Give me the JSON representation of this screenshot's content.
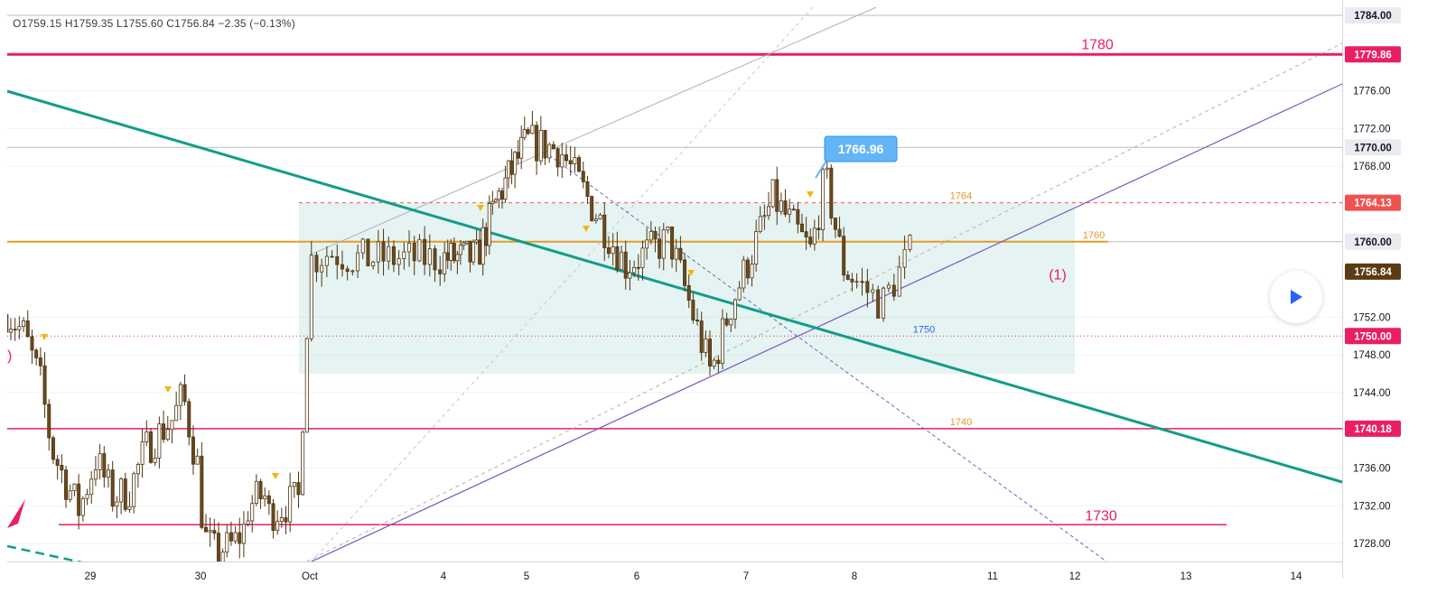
{
  "ohlc": {
    "text": "O1759.15 H1759.35 L1755.60 C1756.84 −2.35 (−0.13%)"
  },
  "colors": {
    "candle_body": "#6b4a1f",
    "channel_line": "#7e57c2",
    "trend_line": "#139c8b",
    "level_red": "#e91e63",
    "level_orange": "#e39a2b",
    "price_tag_current": "#5b3a14",
    "price_tag_red": "#ef5350",
    "price_tag_pink": "#e91e63",
    "callout_blue": "#64b5f6"
  },
  "chart_data": {
    "type": "candlestick",
    "symbol_last": 1756.84,
    "ylim": [
      1726,
      1785
    ],
    "y_ticks": [
      1784,
      1776,
      1772,
      1768,
      1752,
      1748,
      1744,
      1736,
      1732,
      1728
    ],
    "x_labels": [
      {
        "label": "29",
        "day": 0
      },
      {
        "label": "30",
        "day": 1
      },
      {
        "label": "Oct",
        "day": 2
      },
      {
        "label": "4",
        "day": 3
      },
      {
        "label": "5",
        "day": 4
      },
      {
        "label": "6",
        "day": 5
      },
      {
        "label": "7",
        "day": 6
      },
      {
        "label": "8",
        "day": 7
      },
      {
        "label": "11",
        "day": 8
      },
      {
        "label": "12",
        "day": 9
      },
      {
        "label": "13",
        "day": 10
      },
      {
        "label": "14",
        "day": 11
      }
    ],
    "price_tags": [
      {
        "price": 1784.0,
        "label": "1784.00",
        "style": "grey"
      },
      {
        "price": 1779.86,
        "label": "1779.86",
        "style": "pink"
      },
      {
        "price": 1770.0,
        "label": "1770.00",
        "style": "grey"
      },
      {
        "price": 1764.13,
        "label": "1764.13",
        "style": "red"
      },
      {
        "price": 1760.0,
        "label": "1760.00",
        "style": "grey"
      },
      {
        "price": 1756.84,
        "label": "1756.84",
        "style": "current"
      },
      {
        "price": 1750.0,
        "label": "1750.00",
        "style": "pink"
      },
      {
        "price": 1740.18,
        "label": "1740.18",
        "style": "pink"
      }
    ],
    "levels": [
      {
        "price": 1779.86,
        "label": "1780",
        "style": "thick-pink"
      },
      {
        "price": 1764.13,
        "label": "1764",
        "style": "dashed-red"
      },
      {
        "price": 1760.0,
        "label": "1760",
        "style": "orange"
      },
      {
        "price": 1750.0,
        "label": "1750",
        "style": "dotted-pink"
      },
      {
        "price": 1740.18,
        "label": "1740",
        "style": "pink"
      },
      {
        "price": 1730.0,
        "label": "1730",
        "style": "pink"
      }
    ],
    "range_box": {
      "top": 1764.13,
      "bottom": 1746.0,
      "label": "(1)"
    },
    "callout": {
      "label": "1766.96",
      "price": 1766.96
    },
    "key_points": [
      {
        "day": 1.02,
        "price": 1752.6
      },
      {
        "day": 2.15,
        "price": 1758.9
      },
      {
        "day": 2.35,
        "price": 1758.2
      },
      {
        "day": 3.4,
        "price": 1758.3
      },
      {
        "day": 3.65,
        "price": 1764.6
      },
      {
        "day": 4.0,
        "price": 1770.6
      },
      {
        "day": 4.3,
        "price": 1769.8
      },
      {
        "day": 4.9,
        "price": 1757.5
      },
      {
        "day": 5.3,
        "price": 1760.3
      },
      {
        "day": 5.68,
        "price": 1746.0
      },
      {
        "day": 5.85,
        "price": 1752.9
      },
      {
        "day": 6.25,
        "price": 1764.6
      },
      {
        "day": 6.6,
        "price": 1758.9
      },
      {
        "day": 6.73,
        "price": 1766.96
      },
      {
        "day": 6.9,
        "price": 1757.3
      },
      {
        "day": 7.2,
        "price": 1753.4
      },
      {
        "day": 7.4,
        "price": 1758.8
      }
    ]
  }
}
